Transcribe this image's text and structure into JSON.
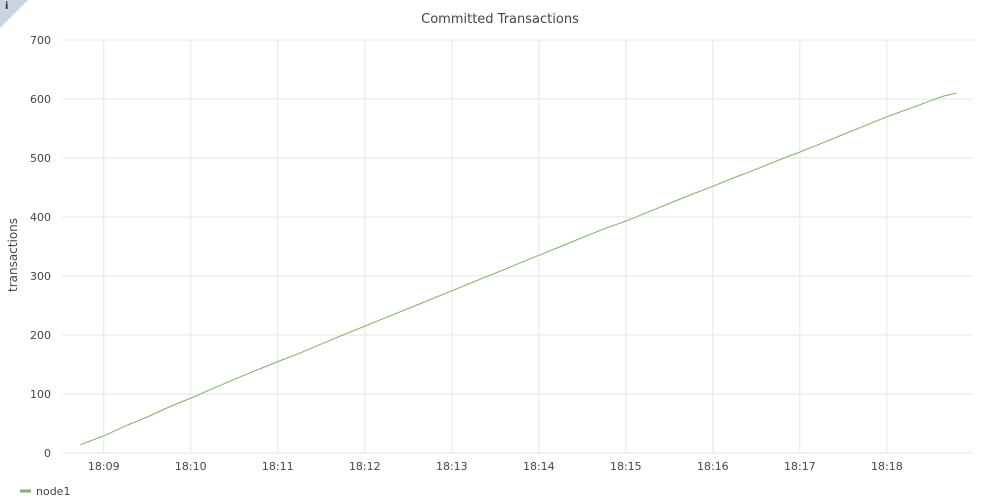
{
  "info_glyph": "i",
  "chart_data": {
    "type": "line",
    "title": "Committed Transactions",
    "xlabel": "",
    "ylabel": "transactions",
    "ylim": [
      0,
      700
    ],
    "yticks": [
      0,
      100,
      200,
      300,
      400,
      500,
      600,
      700
    ],
    "xlim": [
      8.52,
      18.99
    ],
    "xticks": [
      {
        "value": 9,
        "label": "18:09"
      },
      {
        "value": 10,
        "label": "18:10"
      },
      {
        "value": 11,
        "label": "18:11"
      },
      {
        "value": 12,
        "label": "18:12"
      },
      {
        "value": 13,
        "label": "18:13"
      },
      {
        "value": 14,
        "label": "18:14"
      },
      {
        "value": 15,
        "label": "18:15"
      },
      {
        "value": 16,
        "label": "18:16"
      },
      {
        "value": 17,
        "label": "18:17"
      },
      {
        "value": 18,
        "label": "18:18"
      }
    ],
    "grid": true,
    "legend_position": "bottom-left",
    "series": [
      {
        "name": "node1",
        "color": "#7eb26d",
        "x": [
          8.73,
          9.0,
          9.25,
          9.5,
          9.75,
          10.0,
          10.25,
          10.5,
          10.75,
          11.0,
          11.25,
          11.5,
          11.75,
          12.0,
          12.25,
          12.5,
          12.75,
          13.0,
          13.25,
          13.5,
          13.75,
          14.0,
          14.25,
          14.5,
          14.75,
          15.0,
          15.25,
          15.5,
          15.75,
          16.0,
          16.25,
          16.5,
          16.75,
          17.0,
          17.25,
          17.5,
          17.75,
          18.0,
          18.25,
          18.5,
          18.65,
          18.8
        ],
        "values": [
          14,
          29,
          46,
          61,
          78,
          93,
          109,
          125,
          140,
          155,
          169,
          185,
          200,
          215,
          230,
          245,
          260,
          275,
          290,
          305,
          320,
          335,
          350,
          365,
          380,
          393,
          408,
          423,
          438,
          452,
          467,
          481,
          496,
          510,
          525,
          540,
          555,
          570,
          583,
          597,
          605,
          610
        ]
      }
    ]
  }
}
